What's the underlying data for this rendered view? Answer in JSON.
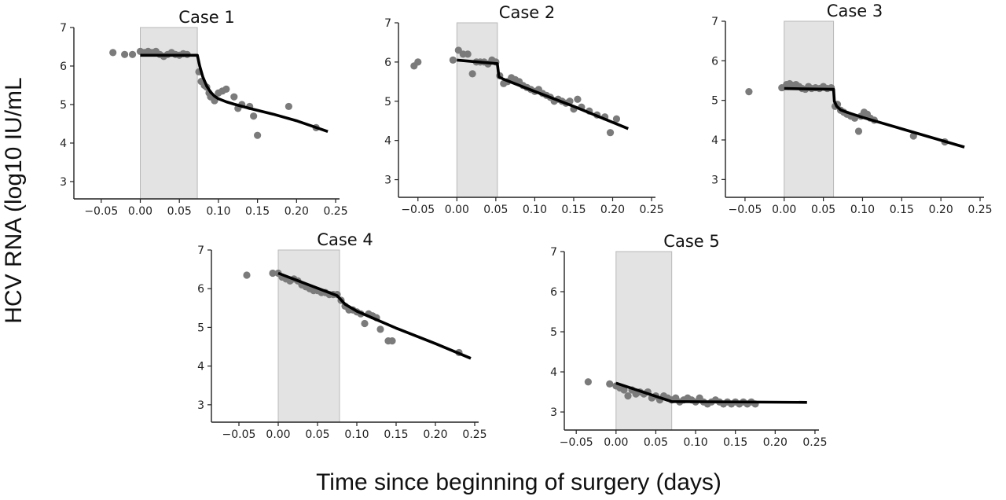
{
  "figure": {
    "ylabel": "HCV RNA (log10 IU/mL",
    "xlabel": "Time since beginning of surgery (days)"
  },
  "chart_data": [
    {
      "type": "scatter",
      "title": "Case 1",
      "xlim": [
        -0.085,
        0.255
      ],
      "ylim": [
        2.55,
        7.0
      ],
      "xticks": [
        -0.05,
        0.0,
        0.05,
        0.1,
        0.15,
        0.2,
        0.25
      ],
      "xtick_labels": [
        "−0.05",
        "0.00",
        "0.05",
        "0.10",
        "0.15",
        "0.20",
        "0.25"
      ],
      "yticks": [
        3,
        4,
        5,
        6,
        7
      ],
      "shaded_interval": [
        0.0,
        0.073
      ],
      "series": [
        {
          "kind": "observed",
          "x": [
            -0.035,
            -0.02,
            -0.01,
            0.0,
            0.005,
            0.01,
            0.015,
            0.02,
            0.025,
            0.03,
            0.035,
            0.04,
            0.045,
            0.05,
            0.055,
            0.06,
            0.075,
            0.078,
            0.082,
            0.085,
            0.088,
            0.09,
            0.095,
            0.1,
            0.105,
            0.11,
            0.12,
            0.125,
            0.13,
            0.14,
            0.145,
            0.15,
            0.19,
            0.225
          ],
          "y": [
            6.35,
            6.3,
            6.3,
            6.38,
            6.35,
            6.38,
            6.35,
            6.38,
            6.3,
            6.25,
            6.3,
            6.35,
            6.3,
            6.28,
            6.32,
            6.3,
            5.85,
            5.6,
            5.5,
            5.45,
            5.3,
            5.2,
            5.1,
            5.3,
            5.35,
            5.4,
            5.2,
            4.9,
            5.0,
            4.95,
            4.7,
            4.2,
            4.95,
            4.4
          ]
        },
        {
          "kind": "fit",
          "x": [
            0.0,
            0.073,
            0.076,
            0.08,
            0.085,
            0.09,
            0.095,
            0.1,
            0.11,
            0.12,
            0.14,
            0.17,
            0.2,
            0.24
          ],
          "y": [
            6.28,
            6.28,
            6.0,
            5.72,
            5.48,
            5.32,
            5.22,
            5.15,
            5.07,
            5.01,
            4.9,
            4.75,
            4.58,
            4.3
          ]
        }
      ]
    },
    {
      "type": "scatter",
      "title": "Case 2",
      "xlim": [
        -0.075,
        0.255
      ],
      "ylim": [
        2.55,
        7.0
      ],
      "xticks": [
        -0.05,
        0.0,
        0.05,
        0.1,
        0.15,
        0.2,
        0.25
      ],
      "xtick_labels": [
        "−0.05",
        "0.00",
        "0.05",
        "0.10",
        "0.15",
        "0.20",
        "0.25"
      ],
      "yticks": [
        3,
        4,
        5,
        6,
        7
      ],
      "shaded_interval": [
        0.0,
        0.052
      ],
      "series": [
        {
          "kind": "observed",
          "x": [
            -0.055,
            -0.05,
            -0.005,
            0.002,
            0.008,
            0.014,
            0.02,
            0.025,
            0.03,
            0.035,
            0.04,
            0.045,
            0.05,
            0.055,
            0.06,
            0.065,
            0.07,
            0.075,
            0.08,
            0.085,
            0.09,
            0.095,
            0.1,
            0.105,
            0.11,
            0.115,
            0.12,
            0.125,
            0.13,
            0.135,
            0.14,
            0.145,
            0.15,
            0.155,
            0.16,
            0.17,
            0.18,
            0.19,
            0.197,
            0.205
          ],
          "y": [
            5.9,
            6.0,
            6.05,
            6.3,
            6.2,
            6.2,
            5.7,
            6.0,
            6.0,
            6.0,
            5.95,
            6.05,
            6.0,
            5.65,
            5.45,
            5.5,
            5.6,
            5.55,
            5.5,
            5.4,
            5.35,
            5.3,
            5.25,
            5.3,
            5.2,
            5.15,
            5.1,
            5.0,
            5.05,
            5.0,
            4.95,
            5.0,
            4.8,
            5.05,
            4.85,
            4.75,
            4.65,
            4.6,
            4.2,
            4.55
          ]
        },
        {
          "kind": "fit",
          "x": [
            0.0,
            0.052,
            0.054,
            0.06,
            0.1,
            0.15,
            0.22
          ],
          "y": [
            6.05,
            5.96,
            5.62,
            5.56,
            5.25,
            4.87,
            4.3
          ]
        }
      ]
    },
    {
      "type": "scatter",
      "title": "Case 3",
      "xlim": [
        -0.075,
        0.255
      ],
      "ylim": [
        2.55,
        7.0
      ],
      "xticks": [
        -0.05,
        0.0,
        0.05,
        0.1,
        0.15,
        0.2,
        0.25
      ],
      "xtick_labels": [
        "−0.05",
        "0.00",
        "0.05",
        "0.10",
        "0.15",
        "0.20",
        "0.25"
      ],
      "yticks": [
        3,
        4,
        5,
        6,
        7
      ],
      "shaded_interval": [
        0.0,
        0.063
      ],
      "series": [
        {
          "kind": "observed",
          "x": [
            -0.045,
            -0.003,
            0.003,
            0.007,
            0.011,
            0.015,
            0.019,
            0.023,
            0.027,
            0.031,
            0.035,
            0.04,
            0.045,
            0.05,
            0.055,
            0.06,
            0.065,
            0.068,
            0.072,
            0.076,
            0.08,
            0.085,
            0.09,
            0.095,
            0.098,
            0.102,
            0.106,
            0.11,
            0.115,
            0.165,
            0.205
          ],
          "y": [
            5.22,
            5.32,
            5.4,
            5.42,
            5.38,
            5.4,
            5.35,
            5.3,
            5.28,
            5.35,
            5.3,
            5.32,
            5.3,
            5.35,
            5.3,
            5.32,
            4.85,
            4.9,
            4.75,
            4.7,
            4.65,
            4.6,
            4.55,
            4.22,
            4.6,
            4.7,
            4.65,
            4.55,
            4.5,
            4.1,
            3.95
          ]
        },
        {
          "kind": "fit",
          "x": [
            0.0,
            0.063,
            0.064,
            0.067,
            0.072,
            0.08,
            0.1,
            0.15,
            0.23
          ],
          "y": [
            5.3,
            5.28,
            4.98,
            4.85,
            4.76,
            4.7,
            4.57,
            4.28,
            3.82
          ]
        }
      ]
    },
    {
      "type": "scatter",
      "title": "Case 4",
      "xlim": [
        -0.085,
        0.255
      ],
      "ylim": [
        2.55,
        7.0
      ],
      "xticks": [
        -0.05,
        0.0,
        0.05,
        0.1,
        0.15,
        0.2,
        0.25
      ],
      "xtick_labels": [
        "−0.05",
        "0.00",
        "0.05",
        "0.10",
        "0.15",
        "0.20",
        "0.25"
      ],
      "yticks": [
        3,
        4,
        5,
        6,
        7
      ],
      "shaded_interval": [
        0.0,
        0.078
      ],
      "series": [
        {
          "kind": "observed",
          "x": [
            -0.04,
            -0.007,
            0.0,
            0.005,
            0.01,
            0.015,
            0.02,
            0.025,
            0.03,
            0.035,
            0.04,
            0.045,
            0.05,
            0.055,
            0.06,
            0.065,
            0.07,
            0.075,
            0.08,
            0.085,
            0.09,
            0.095,
            0.1,
            0.105,
            0.11,
            0.115,
            0.12,
            0.125,
            0.13,
            0.14,
            0.145,
            0.23
          ],
          "y": [
            6.35,
            6.4,
            6.4,
            6.3,
            6.25,
            6.2,
            6.25,
            6.2,
            6.1,
            6.05,
            6.0,
            5.95,
            5.95,
            5.9,
            5.9,
            5.85,
            5.85,
            5.85,
            5.7,
            5.55,
            5.45,
            5.45,
            5.4,
            5.35,
            5.1,
            5.35,
            5.3,
            5.25,
            4.95,
            4.65,
            4.65,
            4.35
          ]
        },
        {
          "kind": "fit",
          "x": [
            0.0,
            0.075,
            0.085,
            0.1,
            0.15,
            0.2,
            0.245
          ],
          "y": [
            6.4,
            5.82,
            5.6,
            5.42,
            4.98,
            4.58,
            4.2
          ]
        }
      ]
    },
    {
      "type": "scatter",
      "title": "Case 5",
      "xlim": [
        -0.065,
        0.255
      ],
      "ylim": [
        2.55,
        7.0
      ],
      "xticks": [
        -0.05,
        0.0,
        0.05,
        0.1,
        0.15,
        0.2,
        0.25
      ],
      "xtick_labels": [
        "−0.05",
        "0.00",
        "0.05",
        "0.10",
        "0.15",
        "0.20",
        "0.25"
      ],
      "yticks": [
        3,
        4,
        5,
        6,
        7
      ],
      "shaded_interval": [
        0.0,
        0.07
      ],
      "series": [
        {
          "kind": "observed",
          "x": [
            -0.035,
            -0.008,
            0.0,
            0.005,
            0.01,
            0.015,
            0.02,
            0.025,
            0.03,
            0.035,
            0.04,
            0.045,
            0.05,
            0.055,
            0.06,
            0.065,
            0.07,
            0.075,
            0.08,
            0.085,
            0.09,
            0.095,
            0.1,
            0.105,
            0.11,
            0.115,
            0.12,
            0.125,
            0.13,
            0.135,
            0.14,
            0.145,
            0.15,
            0.155,
            0.16,
            0.165,
            0.17,
            0.175
          ],
          "y": [
            3.75,
            3.7,
            3.65,
            3.6,
            3.55,
            3.4,
            3.55,
            3.45,
            3.5,
            3.45,
            3.5,
            3.35,
            3.4,
            3.3,
            3.4,
            3.35,
            3.3,
            3.35,
            3.25,
            3.3,
            3.35,
            3.3,
            3.25,
            3.35,
            3.25,
            3.2,
            3.25,
            3.3,
            3.25,
            3.2,
            3.25,
            3.2,
            3.25,
            3.2,
            3.25,
            3.2,
            3.25,
            3.2
          ]
        },
        {
          "kind": "fit",
          "x": [
            0.0,
            0.07,
            0.24
          ],
          "y": [
            3.72,
            3.26,
            3.24
          ]
        }
      ]
    }
  ]
}
